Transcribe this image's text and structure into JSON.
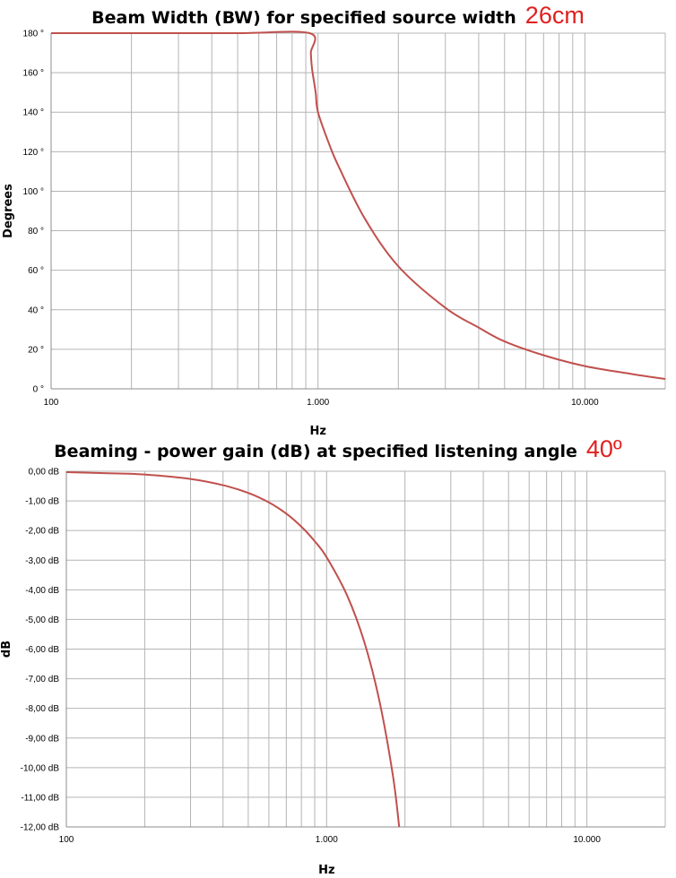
{
  "chart_data": [
    {
      "type": "line",
      "title": "Beam Width (BW) for specified source width",
      "title_extra": "26cm",
      "xlabel": "Hz",
      "ylabel": "Degrees",
      "xscale": "log",
      "xlim": [
        100,
        20000
      ],
      "ylim": [
        0,
        180
      ],
      "x_ticks": [
        100,
        1000,
        10000
      ],
      "x_tick_labels": [
        "100",
        "1.000",
        "10.000"
      ],
      "y_ticks": [
        0,
        20,
        40,
        60,
        80,
        100,
        120,
        140,
        160,
        180
      ],
      "y_tick_labels": [
        "0 °",
        "20 °",
        "40 °",
        "60 °",
        "80 °",
        "100 °",
        "120 °",
        "140 °",
        "160 °",
        "180 °"
      ],
      "grid": true,
      "legend": "none",
      "series_color": "#c0504d",
      "x": [
        100,
        200,
        500,
        930,
        940,
        950,
        980,
        1000,
        1100,
        1200,
        1500,
        2000,
        3000,
        4000,
        5000,
        7000,
        10000,
        15000,
        20000
      ],
      "y": [
        180,
        180,
        180,
        180,
        170,
        162,
        150,
        140,
        124,
        112,
        86,
        62,
        41,
        31,
        24,
        17,
        11.5,
        7.5,
        5
      ]
    },
    {
      "type": "line",
      "title": "Beaming - power gain (dB) at specified listening angle",
      "title_extra": "40º",
      "xlabel": "Hz",
      "ylabel": "dB",
      "xscale": "log",
      "xlim": [
        100,
        20000
      ],
      "ylim": [
        -12,
        0
      ],
      "x_ticks": [
        100,
        1000,
        10000
      ],
      "x_tick_labels": [
        "100",
        "1.000",
        "10.000"
      ],
      "y_ticks": [
        0,
        -1,
        -2,
        -3,
        -4,
        -5,
        -6,
        -7,
        -8,
        -9,
        -10,
        -11,
        -12
      ],
      "y_tick_labels": [
        "0,00 dB",
        "-1,00 dB",
        "-2,00 dB",
        "-3,00 dB",
        "-4,00 dB",
        "-5,00 dB",
        "-6,00 dB",
        "-7,00 dB",
        "-8,00 dB",
        "-9,00 dB",
        "-10,00 dB",
        "-11,00 dB",
        "-12,00 dB"
      ],
      "grid": true,
      "legend": "none",
      "series_color": "#c0504d",
      "x": [
        100,
        150,
        200,
        300,
        400,
        500,
        600,
        700,
        800,
        900,
        1000,
        1200,
        1400,
        1600,
        1800,
        1900
      ],
      "y": [
        -0.03,
        -0.07,
        -0.11,
        -0.26,
        -0.47,
        -0.73,
        -1.05,
        -1.43,
        -1.87,
        -2.36,
        -2.9,
        -4.2,
        -5.8,
        -7.8,
        -10.3,
        -12
      ]
    }
  ]
}
